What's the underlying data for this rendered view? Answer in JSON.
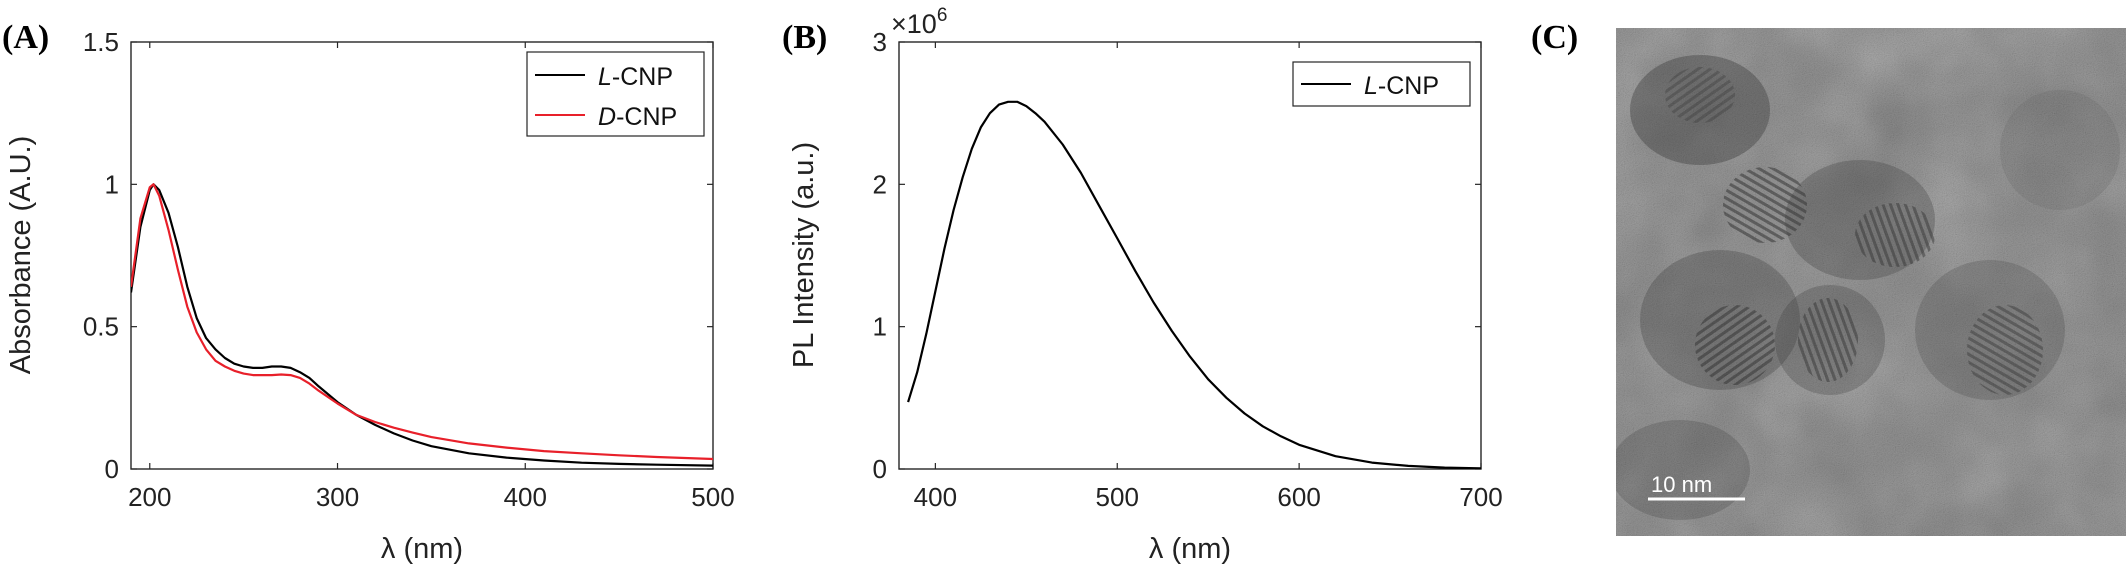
{
  "panels": {
    "a_letter": "(A)",
    "b_letter": "(B)",
    "c_letter": "(C)"
  },
  "tem": {
    "scale_bar_label": "10 nm"
  },
  "chart_data": [
    {
      "type": "line",
      "panel": "(A)",
      "xlabel": "λ (nm)",
      "ylabel": "Absorbance (A.U.)",
      "xlim": [
        190,
        500
      ],
      "ylim": [
        0,
        1.5
      ],
      "xticks": [
        200,
        300,
        400,
        500
      ],
      "yticks": [
        0,
        0.5,
        1,
        1.5
      ],
      "ytick_labels": [
        "0",
        "0.5",
        "1",
        "1.5"
      ],
      "legend_position": "top-right",
      "series": [
        {
          "name": "L-CNP",
          "name_italic": "L",
          "name_rest": "-CNP",
          "color": "#000000",
          "x": [
            190,
            195,
            200,
            202,
            205,
            210,
            215,
            220,
            225,
            230,
            235,
            240,
            245,
            250,
            255,
            260,
            265,
            270,
            275,
            280,
            285,
            290,
            300,
            310,
            320,
            330,
            340,
            350,
            370,
            390,
            410,
            430,
            450,
            470,
            500
          ],
          "y": [
            0.62,
            0.85,
            0.98,
            1.0,
            0.98,
            0.9,
            0.78,
            0.64,
            0.53,
            0.46,
            0.42,
            0.39,
            0.37,
            0.36,
            0.355,
            0.355,
            0.36,
            0.36,
            0.355,
            0.34,
            0.32,
            0.29,
            0.235,
            0.19,
            0.155,
            0.125,
            0.1,
            0.08,
            0.055,
            0.04,
            0.03,
            0.022,
            0.018,
            0.015,
            0.012
          ]
        },
        {
          "name": "D-CNP",
          "name_italic": "D",
          "name_rest": "-CNP",
          "color": "#e8202a",
          "x": [
            190,
            195,
            200,
            202,
            205,
            210,
            215,
            220,
            225,
            230,
            235,
            240,
            245,
            250,
            255,
            260,
            265,
            270,
            275,
            280,
            285,
            290,
            300,
            310,
            320,
            330,
            340,
            350,
            370,
            390,
            410,
            430,
            450,
            470,
            500
          ],
          "y": [
            0.64,
            0.88,
            0.99,
            1.0,
            0.96,
            0.84,
            0.7,
            0.57,
            0.48,
            0.42,
            0.38,
            0.36,
            0.345,
            0.335,
            0.33,
            0.33,
            0.33,
            0.332,
            0.33,
            0.32,
            0.3,
            0.275,
            0.23,
            0.19,
            0.165,
            0.145,
            0.128,
            0.112,
            0.09,
            0.075,
            0.063,
            0.055,
            0.048,
            0.042,
            0.035
          ]
        }
      ]
    },
    {
      "type": "line",
      "panel": "(B)",
      "xlabel": "λ (nm)",
      "ylabel": "PL Intensity (a.u.)",
      "y_multiplier": "×10",
      "y_multiplier_exp": "6",
      "xlim": [
        380,
        700
      ],
      "ylim": [
        0,
        3
      ],
      "xticks": [
        400,
        500,
        600,
        700
      ],
      "yticks": [
        0,
        1,
        2,
        3
      ],
      "legend_position": "top-right",
      "series": [
        {
          "name": "L-CNP",
          "name_italic": "L",
          "name_rest": "-CNP",
          "color": "#000000",
          "x": [
            385,
            390,
            395,
            400,
            405,
            410,
            415,
            420,
            425,
            430,
            435,
            440,
            445,
            450,
            455,
            460,
            470,
            480,
            490,
            500,
            510,
            520,
            530,
            540,
            550,
            560,
            570,
            580,
            590,
            600,
            620,
            640,
            660,
            680,
            700
          ],
          "y": [
            0.47,
            0.68,
            0.95,
            1.25,
            1.55,
            1.82,
            2.05,
            2.25,
            2.4,
            2.5,
            2.56,
            2.58,
            2.58,
            2.55,
            2.5,
            2.44,
            2.28,
            2.08,
            1.85,
            1.62,
            1.39,
            1.17,
            0.97,
            0.79,
            0.63,
            0.5,
            0.39,
            0.3,
            0.23,
            0.17,
            0.09,
            0.045,
            0.022,
            0.01,
            0.005
          ]
        }
      ]
    }
  ]
}
